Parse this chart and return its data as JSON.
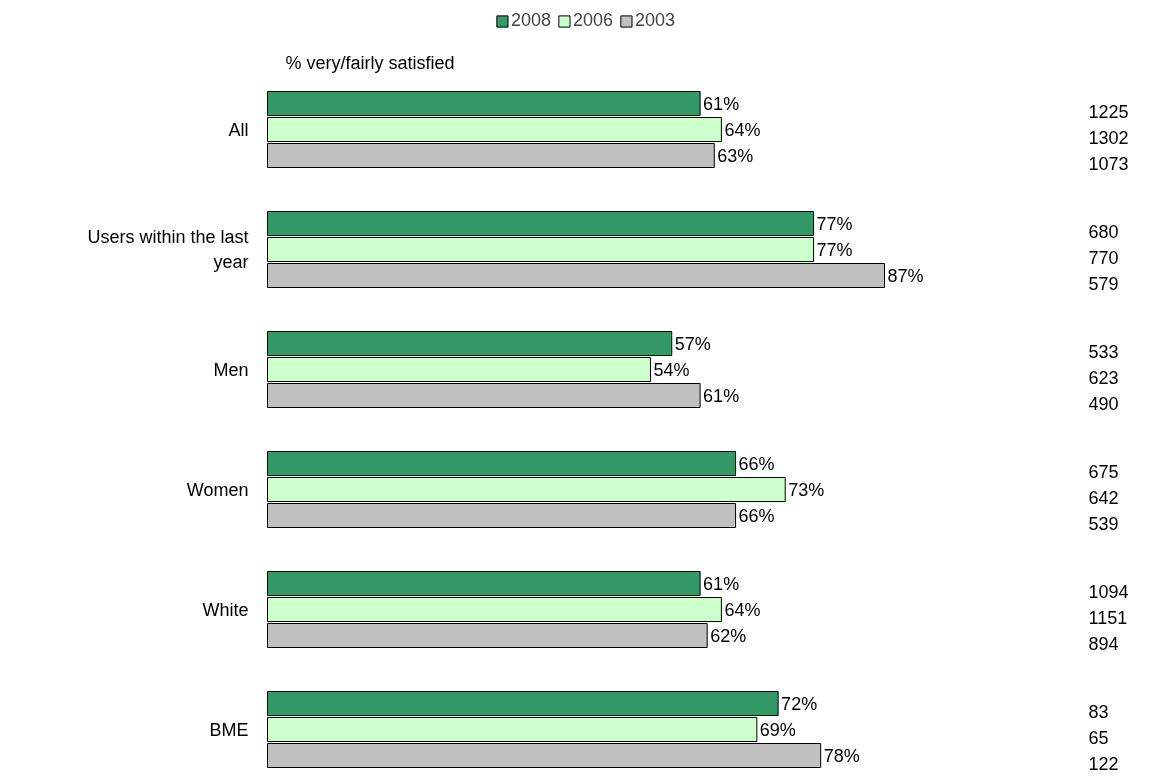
{
  "chart_data": {
    "type": "bar",
    "orientation": "horizontal",
    "subtitle": "% very/fairly satisfied",
    "categories": [
      "All",
      "Users within the last year",
      "Men",
      "Women",
      "White",
      "BME"
    ],
    "series": [
      {
        "name": "2008",
        "color": "#339966",
        "values": [
          61,
          77,
          57,
          66,
          61,
          72
        ],
        "value_labels": [
          "61%",
          "77%",
          "57%",
          "66%",
          "61%",
          "72%"
        ]
      },
      {
        "name": "2006",
        "color": "#ccffcc",
        "values": [
          64,
          77,
          54,
          73,
          64,
          69
        ],
        "value_labels": [
          "64%",
          "77%",
          "54%",
          "73%",
          "64%",
          "69%"
        ]
      },
      {
        "name": "2003",
        "color": "#c0c0c0",
        "values": [
          63,
          87,
          61,
          66,
          62,
          78
        ],
        "value_labels": [
          "63%",
          "87%",
          "61%",
          "66%",
          "62%",
          "78%"
        ]
      }
    ],
    "annotations": [
      "1225",
      "1302",
      "1073",
      "680",
      "770",
      "579",
      "533",
      "623",
      "490",
      "675",
      "642",
      "539",
      "1094",
      "1151",
      "894",
      "83",
      "65",
      "122"
    ],
    "legend": "top",
    "grid": false
  }
}
